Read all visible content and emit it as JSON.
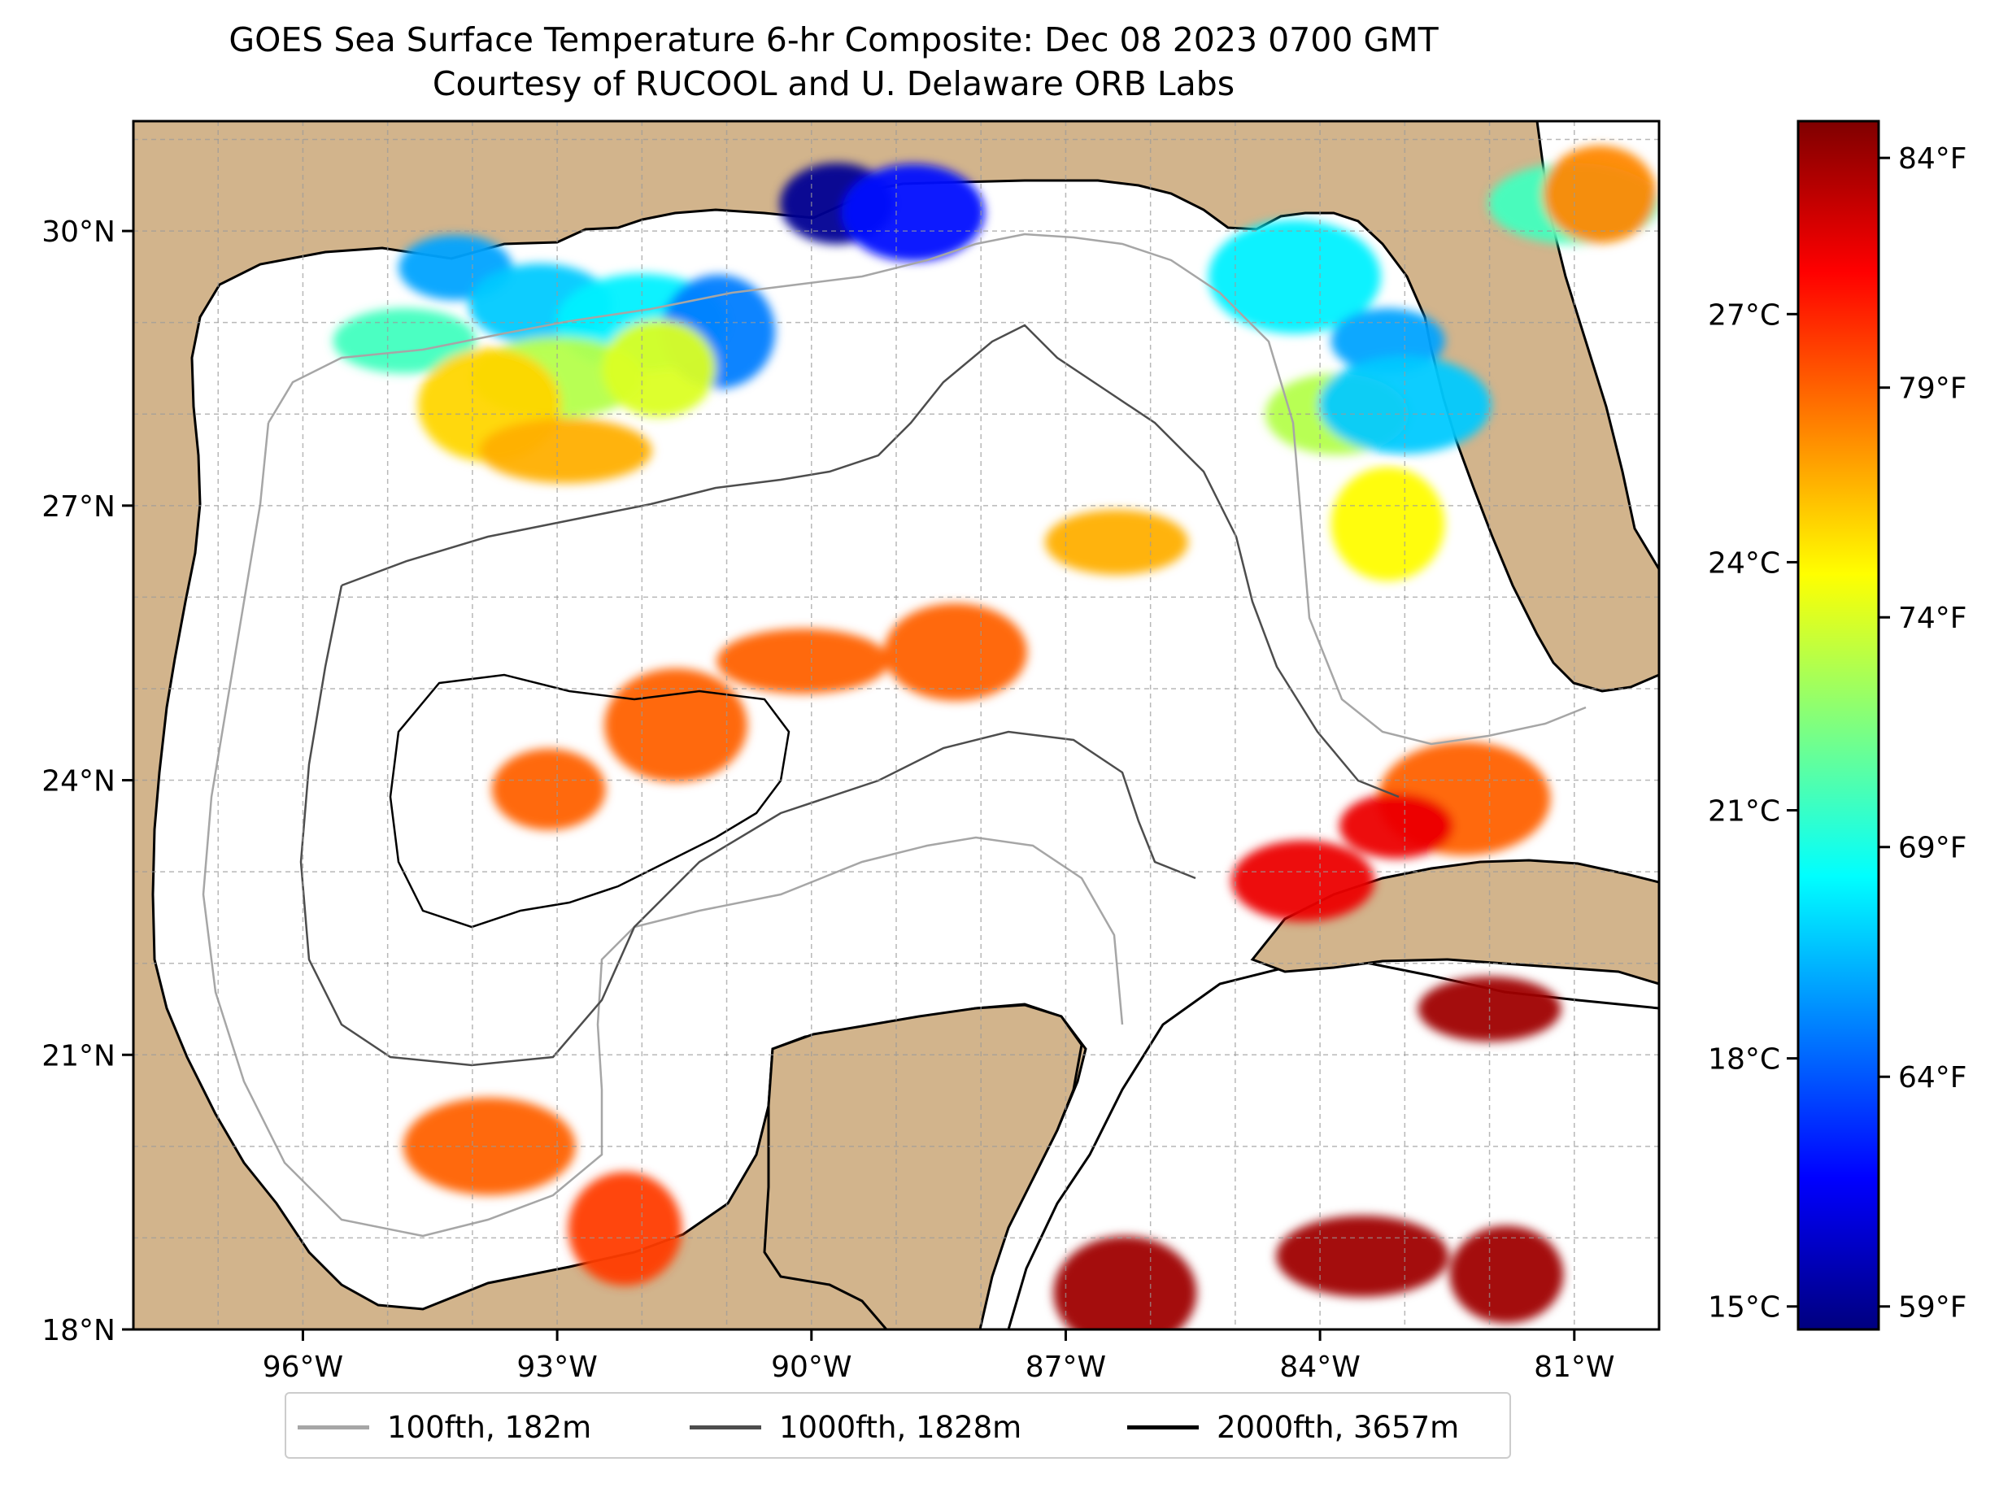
{
  "title": {
    "line1": "GOES Sea Surface Temperature 6-hr Composite: Dec 08 2023 0700 GMT",
    "line2": "Courtesy of RUCOOL and U. Delaware ORB Labs"
  },
  "map": {
    "region": "Gulf of Mexico",
    "lat_range": [
      18,
      31.2
    ],
    "lon_range": [
      -98,
      -80
    ],
    "lat_labels": [
      "18°N",
      "21°N",
      "24°N",
      "27°N",
      "30°N"
    ],
    "lon_labels": [
      "96°W",
      "93°W",
      "90°W",
      "87°W",
      "84°W",
      "81°W"
    ],
    "land_color": "#d2b48c",
    "water_color": "#ffffff",
    "inland_water_color": "#9bb5e3",
    "grid": "dashed"
  },
  "colorbar": {
    "celsius_labels": [
      "15°C",
      "18°C",
      "21°C",
      "24°C",
      "27°C"
    ],
    "fahrenheit_labels": [
      "59°F",
      "64°F",
      "69°F",
      "74°F",
      "79°F",
      "84°F"
    ],
    "range_f": [
      58.5,
      84.8
    ],
    "colormap": "jet"
  },
  "legend": {
    "items": [
      {
        "label": "100fth, 182m",
        "color": "#a6a6a6"
      },
      {
        "label": "1000fth, 1828m",
        "color": "#4d4d4d"
      },
      {
        "label": "2000fth, 3657m",
        "color": "#000000"
      }
    ]
  },
  "sst_patches_f": [
    {
      "lon": -94.2,
      "lat": 29.6,
      "temp_f": 66
    },
    {
      "lon": -93.2,
      "lat": 29.2,
      "temp_f": 67
    },
    {
      "lon": -92.0,
      "lat": 29.0,
      "temp_f": 68
    },
    {
      "lon": -91.1,
      "lat": 28.9,
      "temp_f": 65
    },
    {
      "lon": -94.8,
      "lat": 28.8,
      "temp_f": 70
    },
    {
      "lon": -93.0,
      "lat": 28.4,
      "temp_f": 73
    },
    {
      "lon": -91.8,
      "lat": 28.5,
      "temp_f": 74
    },
    {
      "lon": -93.8,
      "lat": 28.1,
      "temp_f": 76
    },
    {
      "lon": -92.9,
      "lat": 27.6,
      "temp_f": 77
    },
    {
      "lon": -89.7,
      "lat": 30.3,
      "temp_f": 59
    },
    {
      "lon": -88.8,
      "lat": 30.2,
      "temp_f": 62
    },
    {
      "lon": -84.3,
      "lat": 29.5,
      "temp_f": 68
    },
    {
      "lon": -83.2,
      "lat": 28.8,
      "temp_f": 66
    },
    {
      "lon": -83.8,
      "lat": 28.0,
      "temp_f": 73
    },
    {
      "lon": -83.0,
      "lat": 28.1,
      "temp_f": 67
    },
    {
      "lon": -83.2,
      "lat": 26.8,
      "temp_f": 75
    },
    {
      "lon": -86.4,
      "lat": 26.6,
      "temp_f": 77
    },
    {
      "lon": -81.0,
      "lat": 30.3,
      "temp_f": 70
    },
    {
      "lon": -80.7,
      "lat": 30.4,
      "temp_f": 78
    },
    {
      "lon": -91.6,
      "lat": 24.6,
      "temp_f": 79
    },
    {
      "lon": -90.1,
      "lat": 25.3,
      "temp_f": 79
    },
    {
      "lon": -93.1,
      "lat": 23.9,
      "temp_f": 79
    },
    {
      "lon": -88.3,
      "lat": 25.4,
      "temp_f": 79
    },
    {
      "lon": -82.3,
      "lat": 23.8,
      "temp_f": 79
    },
    {
      "lon": -83.1,
      "lat": 23.5,
      "temp_f": 82
    },
    {
      "lon": -84.2,
      "lat": 22.9,
      "temp_f": 82
    },
    {
      "lon": -93.8,
      "lat": 20.0,
      "temp_f": 79
    },
    {
      "lon": -92.2,
      "lat": 19.1,
      "temp_f": 80
    },
    {
      "lon": -82.0,
      "lat": 21.5,
      "temp_f": 84
    },
    {
      "lon": -83.5,
      "lat": 18.8,
      "temp_f": 84
    },
    {
      "lon": -81.8,
      "lat": 18.6,
      "temp_f": 84
    },
    {
      "lon": -86.3,
      "lat": 18.4,
      "temp_f": 84
    }
  ]
}
